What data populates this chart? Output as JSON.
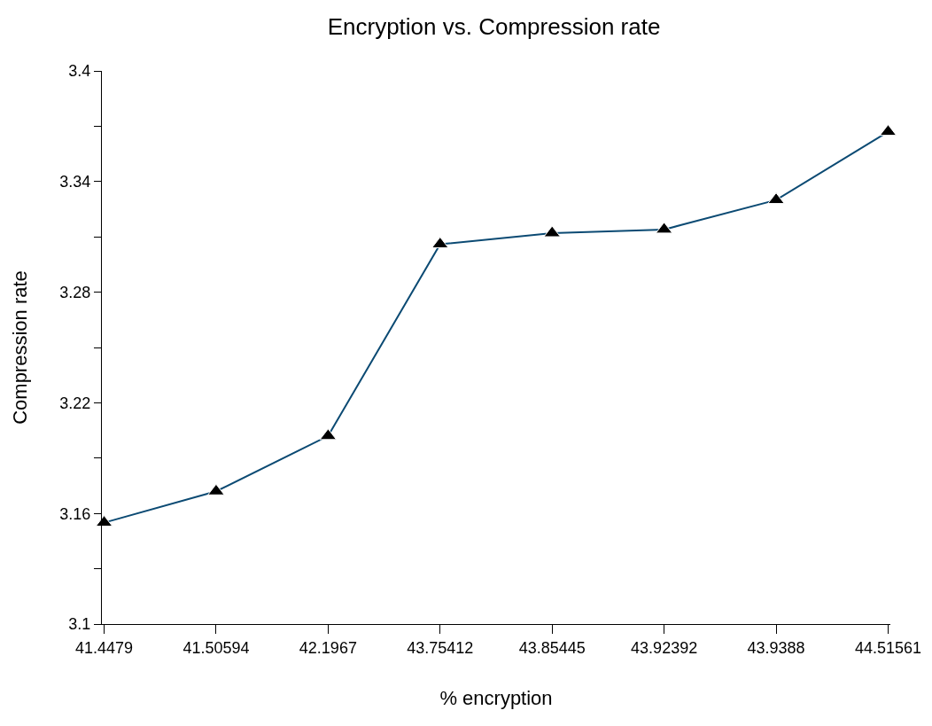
{
  "chart_data": {
    "type": "line",
    "title": "Encryption vs. Compression rate",
    "xlabel": "% encryption",
    "ylabel": "Compression rate",
    "categories": [
      "41.4479",
      "41.50594",
      "42.1967",
      "43.75412",
      "43.85445",
      "43.92392",
      "43.9388",
      "44.51561"
    ],
    "series": [
      {
        "color": "#0b4a73",
        "values": [
          3.155,
          3.172,
          3.202,
          3.306,
          3.312,
          3.314,
          3.33,
          3.367
        ]
      }
    ],
    "ylim": [
      3.1,
      3.4
    ],
    "yticks": [
      3.1,
      {
        "value": 3.13,
        "label": null
      },
      3.16,
      {
        "value": 3.19,
        "label": null
      },
      3.22,
      {
        "value": 3.25,
        "label": null
      },
      3.28,
      {
        "value": 3.31,
        "label": null
      },
      3.34,
      {
        "value": 3.37,
        "label": null
      },
      3.4
    ],
    "marker": "triangle",
    "line_style": "solid",
    "legend": false
  }
}
